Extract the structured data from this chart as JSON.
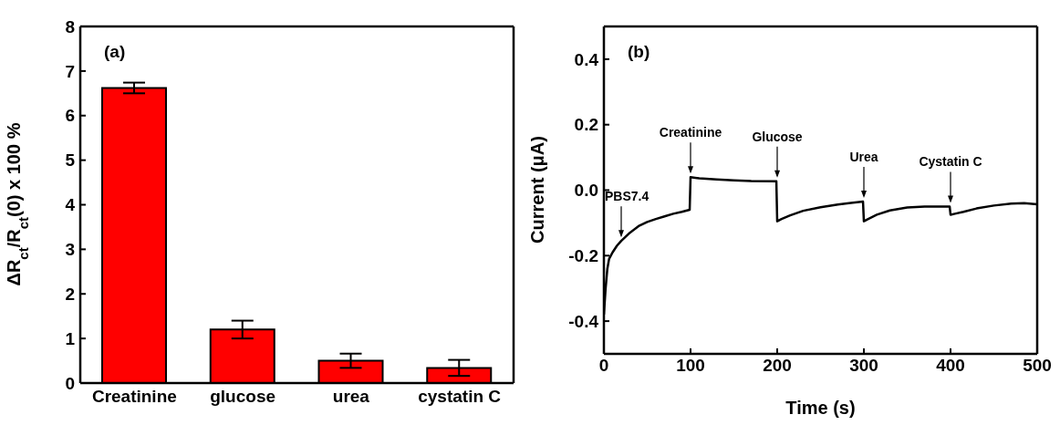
{
  "chart_data": [
    {
      "type": "bar",
      "categories": [
        "Creatinine",
        "glucose",
        "urea",
        "cystatin C"
      ],
      "values": [
        6.62,
        1.2,
        0.5,
        0.34
      ],
      "errors": [
        0.12,
        0.2,
        0.16,
        0.18
      ],
      "color": "#ff0000",
      "ylim": [
        0,
        8
      ],
      "yticks": [
        0,
        1,
        2,
        3,
        4,
        5,
        6,
        7,
        8
      ],
      "ylabel": "ΔR$_{ct}$/R$_{ct}$(0) x 100 %",
      "annotations": [
        "(a)"
      ]
    },
    {
      "type": "line",
      "x": [
        0,
        2,
        4,
        6,
        10,
        15,
        20,
        30,
        40,
        50,
        60,
        70,
        80,
        90,
        99,
        100,
        110,
        130,
        150,
        170,
        199,
        200,
        205,
        215,
        230,
        250,
        270,
        285,
        299,
        300,
        305,
        315,
        330,
        350,
        370,
        385,
        399,
        400,
        405,
        415,
        430,
        450,
        470,
        485,
        500
      ],
      "values": [
        -0.38,
        -0.3,
        -0.24,
        -0.21,
        -0.19,
        -0.17,
        -0.155,
        -0.13,
        -0.11,
        -0.097,
        -0.088,
        -0.08,
        -0.072,
        -0.066,
        -0.06,
        0.04,
        0.036,
        0.033,
        0.03,
        0.028,
        0.027,
        -0.095,
        -0.088,
        -0.077,
        -0.063,
        -0.052,
        -0.044,
        -0.039,
        -0.035,
        -0.095,
        -0.088,
        -0.075,
        -0.062,
        -0.053,
        -0.05,
        -0.05,
        -0.05,
        -0.075,
        -0.072,
        -0.066,
        -0.056,
        -0.047,
        -0.041,
        -0.04,
        -0.043
      ],
      "color": "#000000",
      "xlim": [
        0,
        500
      ],
      "xticks": [
        0,
        100,
        200,
        300,
        400,
        500
      ],
      "ylim": [
        -0.5,
        0.5
      ],
      "yticks": [
        -0.4,
        -0.2,
        {
          "value": 0,
          "label": "0.0"
        },
        0.2,
        0.4
      ],
      "xlabel": "Time (s)",
      "ylabel": "Current (μA)",
      "annotations": [
        "(b)",
        {
          "text": "PBS7.4",
          "x": 20,
          "y": -0.155
        },
        {
          "text": "Creatinine",
          "x": 100,
          "y": 0.04
        },
        {
          "text": "Glucose",
          "x": 200,
          "y": 0.027
        },
        {
          "text": "Urea",
          "x": 300,
          "y": -0.035
        },
        {
          "text": "Cystatin C",
          "x": 400,
          "y": -0.05
        }
      ]
    }
  ]
}
